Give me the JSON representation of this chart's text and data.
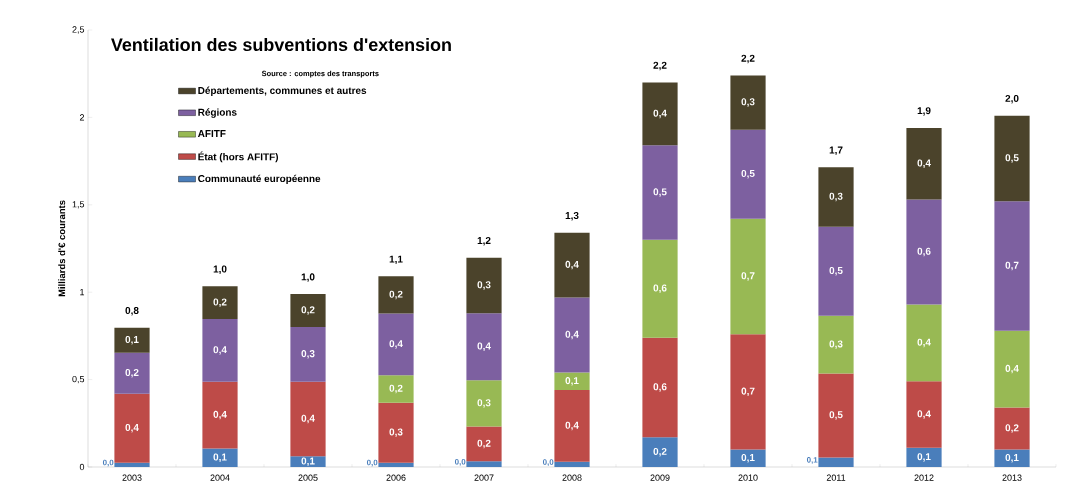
{
  "chart_data": {
    "type": "bar",
    "stacked": true,
    "title": "Ventilation des subventions d'extension",
    "subtitle": "Source : comptes des transports",
    "ylabel": "Milliards d'€ courants",
    "categories": [
      "2003",
      "2004",
      "2005",
      "2006",
      "2007",
      "2008",
      "2009",
      "2010",
      "2011",
      "2012",
      "2013"
    ],
    "series": [
      {
        "name": "Communauté européenne",
        "color": "#4a7ebb",
        "values": [
          0.025,
          0.106,
          0.061,
          0.025,
          0.033,
          0.03,
          0.17,
          0.1,
          0.055,
          0.11,
          0.1
        ],
        "value_labels": [
          "0,0",
          "0,1",
          "0,1",
          "0,0",
          "0,0",
          "0,0",
          "0,2",
          "0,1",
          "0,1",
          "0,1",
          "0,1"
        ]
      },
      {
        "name": "État (hors AFITF)",
        "color": "#be4b48",
        "values": [
          0.394,
          0.382,
          0.427,
          0.343,
          0.198,
          0.41,
          0.57,
          0.66,
          0.48,
          0.38,
          0.24
        ],
        "value_labels": [
          "0,4",
          "0,4",
          "0,4",
          "0,3",
          "0,2",
          "0,4",
          "0,6",
          "0,7",
          "0,5",
          "0,4",
          "0,2"
        ]
      },
      {
        "name": "AFITF",
        "color": "#98b954",
        "values": [
          null,
          null,
          null,
          0.157,
          0.265,
          0.1,
          0.56,
          0.66,
          0.33,
          0.44,
          0.44
        ],
        "value_labels": [
          null,
          null,
          null,
          "0,2",
          "0,3",
          "0,1",
          "0,6",
          "0,7",
          "0,3",
          "0,4",
          "0,4"
        ]
      },
      {
        "name": "Régions",
        "color": "#7d60a0",
        "values": [
          0.235,
          0.358,
          0.313,
          0.353,
          0.384,
          0.43,
          0.54,
          0.51,
          0.51,
          0.6,
          0.74
        ],
        "value_labels": [
          "0,2",
          "0,4",
          "0,3",
          "0,4",
          "0,4",
          "0,4",
          "0,5",
          "0,5",
          "0,5",
          "0,6",
          "0,7"
        ]
      },
      {
        "name": "Départements, communes et autres",
        "color": "#4b432b",
        "values": [
          0.143,
          0.188,
          0.188,
          0.213,
          0.317,
          0.37,
          0.36,
          0.31,
          0.34,
          0.41,
          0.49
        ],
        "value_labels": [
          "0,1",
          "0,2",
          "0,2",
          "0,2",
          "0,3",
          "0,4",
          "0,4",
          "0,3",
          "0,3",
          "0,4",
          "0,5"
        ]
      }
    ],
    "totals": [
      "0,8",
      "1,0",
      "1,0",
      "1,1",
      "1,2",
      "1,3",
      "2,2",
      "2,2",
      "1,7",
      "1,9",
      "2,0"
    ],
    "ylim": [
      0,
      2.5
    ],
    "yticks": [
      0,
      {
        "value": 0.5,
        "label": "0,5"
      },
      1,
      {
        "value": 1.5,
        "label": "1,5"
      },
      2,
      {
        "value": 2.5,
        "label": "2,5"
      }
    ],
    "legend": "top left",
    "grid": false
  }
}
